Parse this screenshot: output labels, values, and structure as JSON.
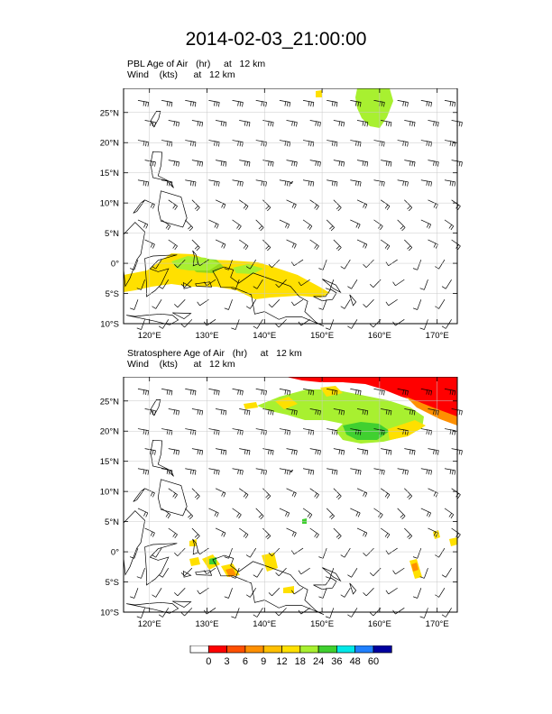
{
  "title": "2014-02-03_21:00:00",
  "panels": [
    {
      "id": "pbl",
      "var_line": "PBL Age of Air   (hr)     at   12 km",
      "wind_line": "Wind    (kts)      at   12 km"
    },
    {
      "id": "strat",
      "var_line": "Stratosphere Age of Air   (hr)     at   12 km",
      "wind_line": "Wind    (kts)      at   12 km"
    }
  ],
  "axes": {
    "lon_ticks": [
      "120°E",
      "130°E",
      "140°E",
      "150°E",
      "160°E",
      "170°E"
    ],
    "lat_ticks": [
      "25°N",
      "20°N",
      "15°N",
      "10°N",
      "5°N",
      "0°",
      "5°S",
      "10°S"
    ],
    "lon_range": [
      115.5,
      173.5
    ],
    "lat_range": [
      -10,
      29
    ]
  },
  "colorbar": {
    "labels": [
      "0",
      "3",
      "6",
      "9",
      "12",
      "18",
      "24",
      "36",
      "48",
      "60"
    ],
    "colors": [
      "#ffffff",
      "#ff0000",
      "#ff5000",
      "#ff9000",
      "#ffc000",
      "#ffe000",
      "#a8f030",
      "#40d030",
      "#00e8e8",
      "#2080ff",
      "#0000a0"
    ]
  }
}
